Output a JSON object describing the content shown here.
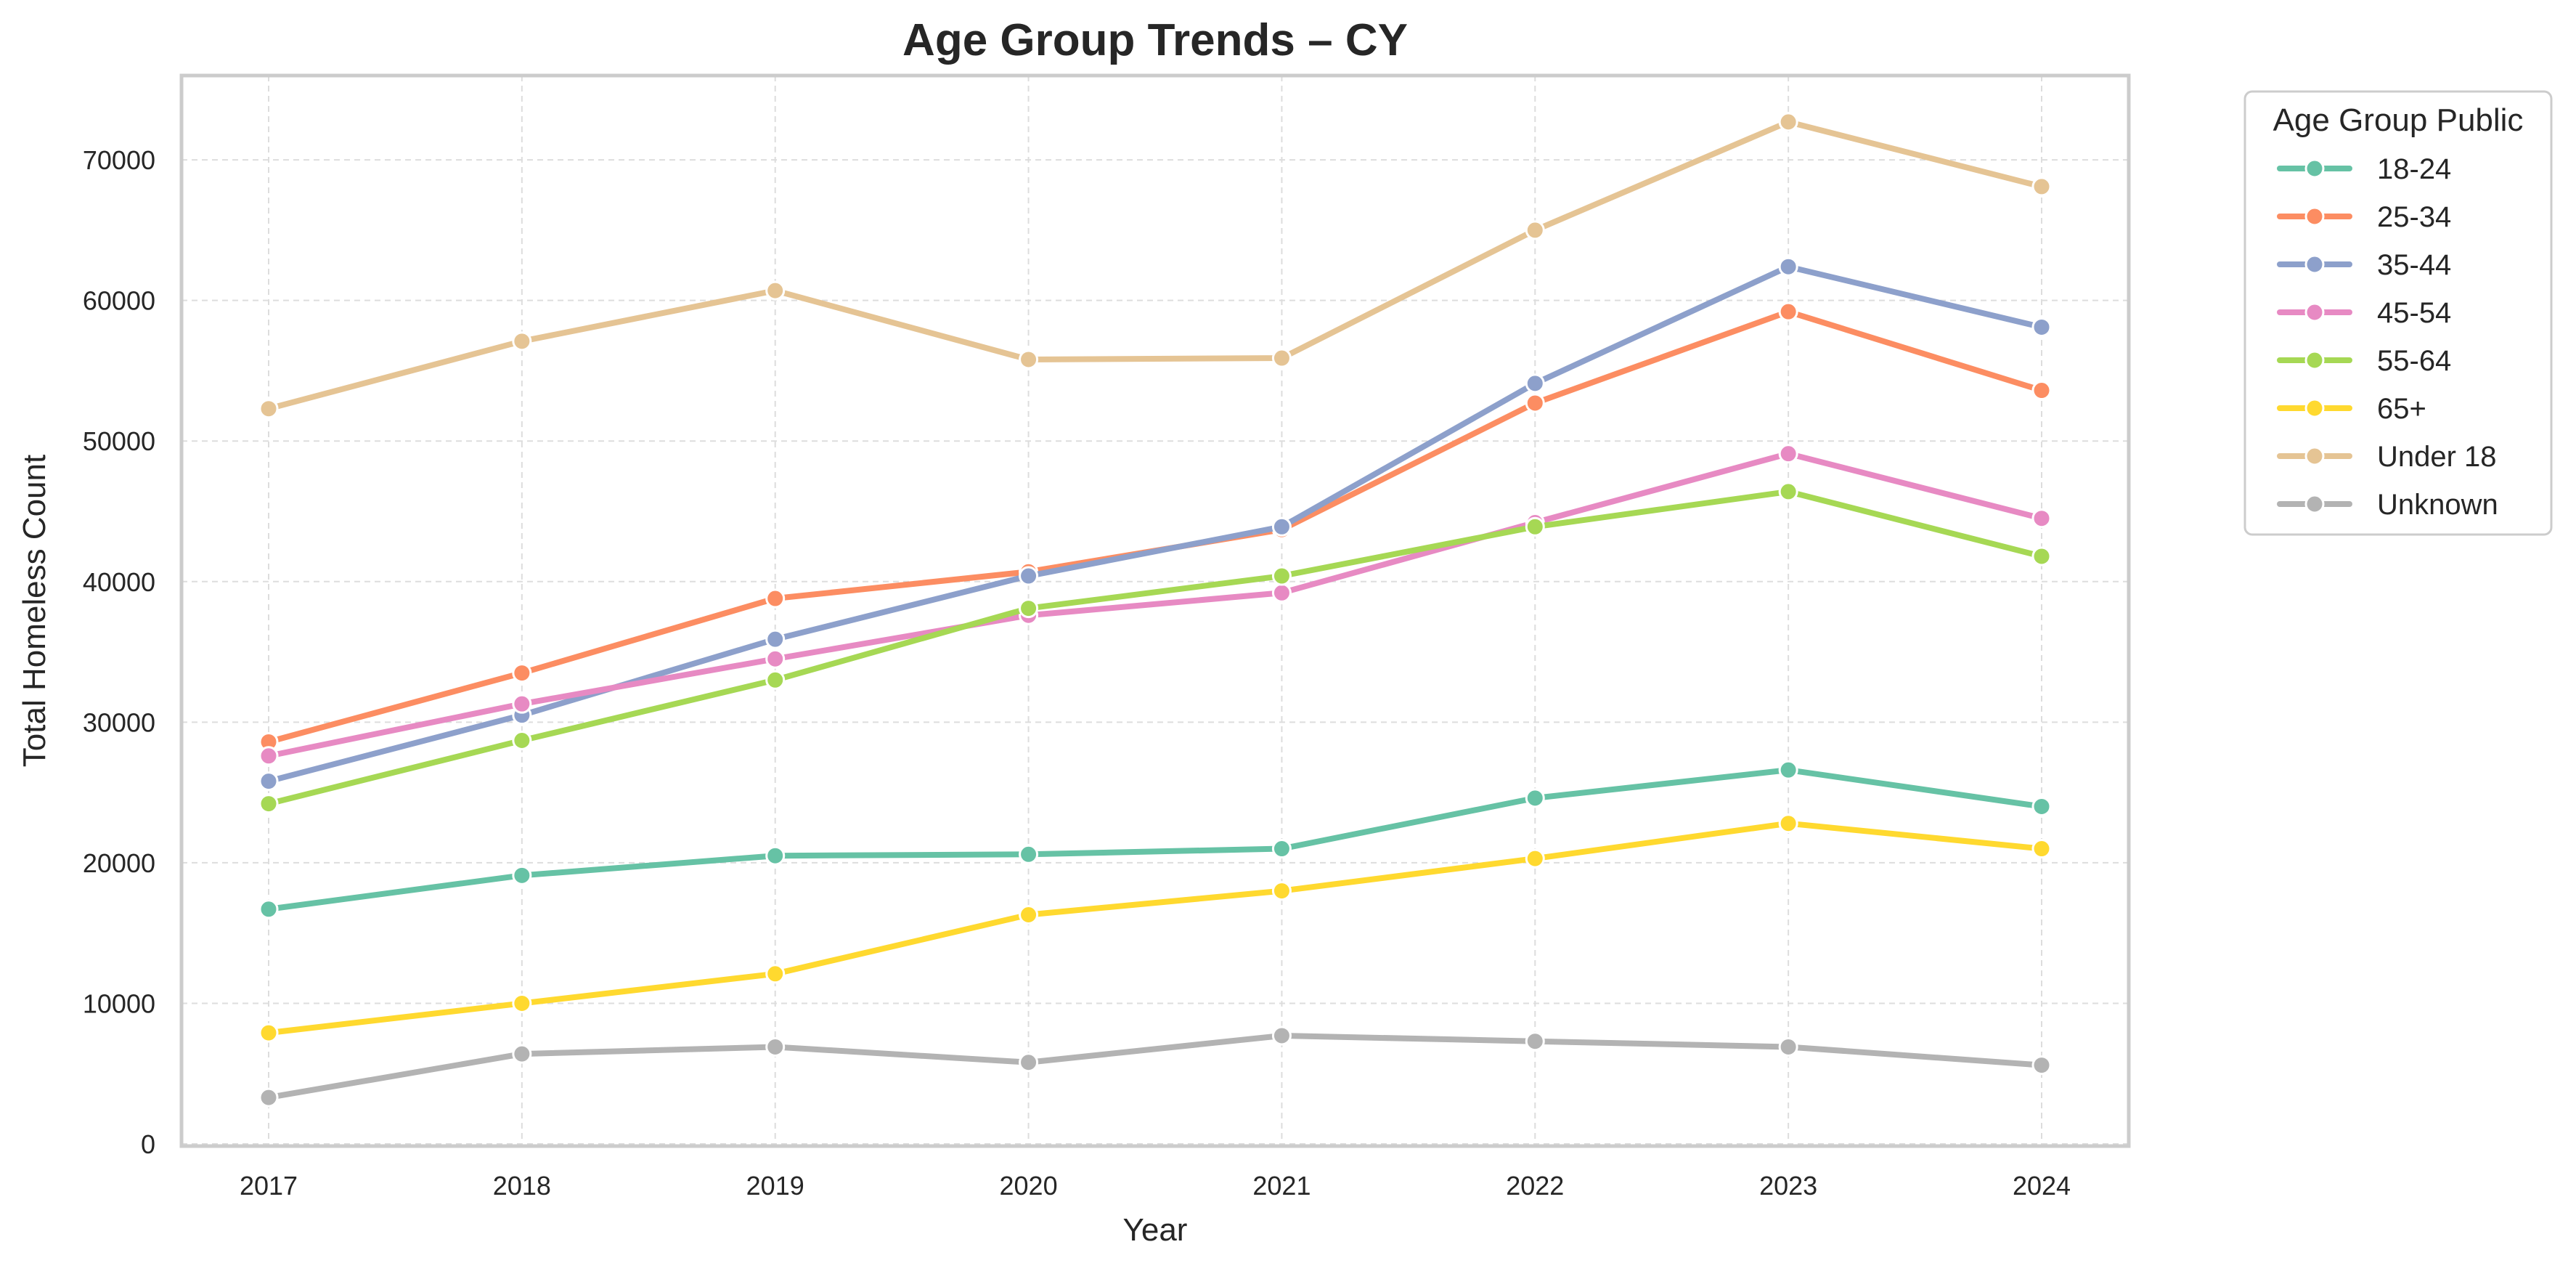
{
  "chart_data": {
    "type": "line",
    "title": "Age Group Trends – CY",
    "xlabel": "Year",
    "ylabel": "Total Homeless Count",
    "x": [
      2017,
      2018,
      2019,
      2020,
      2021,
      2022,
      2023,
      2024
    ],
    "x_tick_labels": [
      "2017",
      "2018",
      "2019",
      "2020",
      "2021",
      "2022",
      "2023",
      "2024"
    ],
    "ylim": [
      0,
      76000
    ],
    "y_ticks": [
      0,
      10000,
      20000,
      30000,
      40000,
      50000,
      60000,
      70000
    ],
    "y_tick_labels": [
      "0",
      "10000",
      "20000",
      "30000",
      "40000",
      "50000",
      "60000",
      "70000"
    ],
    "grid": true,
    "legend": {
      "title": "Age Group Public",
      "placement": "outside-top-right"
    },
    "series": [
      {
        "name": "18-24",
        "color": "#66c2a5",
        "values": [
          16700,
          19100,
          20500,
          20600,
          21000,
          24600,
          26600,
          24000
        ]
      },
      {
        "name": "25-34",
        "color": "#fc8d62",
        "values": [
          28600,
          33500,
          38800,
          40700,
          43700,
          52700,
          59200,
          53600
        ]
      },
      {
        "name": "35-44",
        "color": "#8da0cb",
        "values": [
          25800,
          30500,
          35900,
          40400,
          43900,
          54100,
          62400,
          58100
        ]
      },
      {
        "name": "45-54",
        "color": "#e78ac3",
        "values": [
          27600,
          31300,
          34500,
          37600,
          39200,
          44200,
          49100,
          44500
        ]
      },
      {
        "name": "55-64",
        "color": "#a6d854",
        "values": [
          24200,
          28700,
          33000,
          38100,
          40400,
          43900,
          46400,
          41800
        ]
      },
      {
        "name": "65+",
        "color": "#ffd92f",
        "values": [
          7900,
          10000,
          12100,
          16300,
          18000,
          20300,
          22800,
          21000
        ]
      },
      {
        "name": "Under 18",
        "color": "#e5c494",
        "values": [
          52300,
          57100,
          60700,
          55800,
          55900,
          65000,
          72700,
          68100
        ]
      },
      {
        "name": "Unknown",
        "color": "#b3b3b3",
        "values": [
          3300,
          6400,
          6900,
          5800,
          7700,
          7300,
          6900,
          5600
        ]
      }
    ]
  }
}
